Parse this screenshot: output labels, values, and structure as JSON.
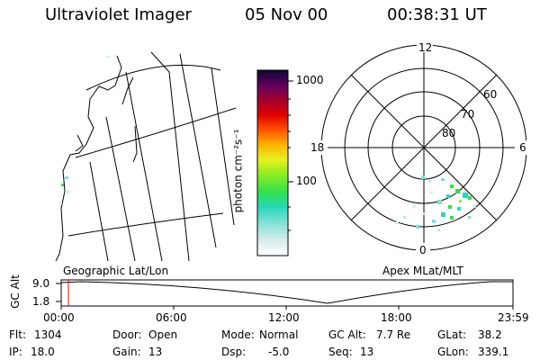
{
  "header": {
    "title": "Ultraviolet Imager",
    "date": "05 Nov 00",
    "time": "00:38:31 UT"
  },
  "colorbar": {
    "label": "photon cm⁻²s⁻¹",
    "ticks": [
      "1000",
      "100"
    ]
  },
  "polar": {
    "hour_labels": [
      "12",
      "18",
      "6",
      "0"
    ],
    "lat_labels": [
      "60",
      "70",
      "80"
    ]
  },
  "map_labels": {
    "left": "Geographic Lat/Lon",
    "right": "Apex MLat/MLT"
  },
  "timeline": {
    "ylabel": "GC Alt",
    "y_ticks": [
      "9.0",
      "1.8"
    ],
    "x_ticks": [
      "00:00",
      "06:00",
      "12:00",
      "18:00",
      "23:59"
    ],
    "marker_color": "#ff0000"
  },
  "info": [
    {
      "label": "Flt:",
      "value": "1304"
    },
    {
      "label": "IP:",
      "value": "18.0"
    },
    {
      "label": "Door:",
      "value": "Open"
    },
    {
      "label": "Gain:",
      "value": "13"
    },
    {
      "label": "Mode:",
      "value": "Normal"
    },
    {
      "label": "Dsp:",
      "value": "-5.0"
    },
    {
      "label": "GC Alt:",
      "value": "7.7 Re"
    },
    {
      "label": "Seq:",
      "value": "13"
    },
    {
      "label": "GLat:",
      "value": "38.2"
    },
    {
      "label": "GLon:",
      "value": "339.1"
    }
  ]
}
